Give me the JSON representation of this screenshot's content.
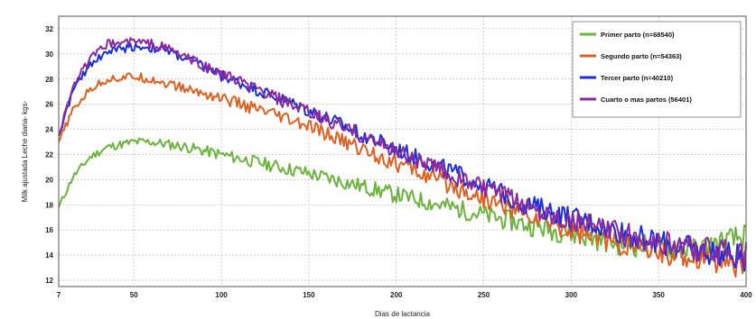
{
  "chart_data": {
    "type": "line",
    "title": "",
    "xlabel": "Dias de lactancia",
    "ylabel": "Milk ajustada Leche diaria- kgs-",
    "xlim": [
      7,
      400
    ],
    "ylim": [
      11.5,
      33
    ],
    "xticks": [
      7,
      50,
      100,
      150,
      200,
      250,
      300,
      350,
      400
    ],
    "yticks": [
      12,
      14,
      16,
      18,
      20,
      22,
      24,
      26,
      28,
      30,
      32
    ],
    "grid": true,
    "legend_position": "top-right",
    "series": [
      {
        "name": "Primer parto (n=68540)",
        "color": "#6cb33f",
        "x": [
          7,
          15,
          25,
          35,
          50,
          60,
          70,
          80,
          100,
          150,
          200,
          250,
          275,
          300,
          325,
          350,
          375,
          400
        ],
        "values": [
          17.8,
          20.2,
          21.8,
          22.6,
          23.0,
          23.0,
          22.8,
          22.6,
          22.0,
          20.5,
          18.8,
          17.2,
          16.4,
          15.7,
          15.0,
          14.6,
          14.5,
          15.5
        ]
      },
      {
        "name": "Segundo parto (n=54363)",
        "color": "#e06020",
        "x": [
          7,
          15,
          25,
          35,
          50,
          60,
          70,
          80,
          100,
          150,
          200,
          250,
          275,
          300,
          325,
          350,
          375,
          400
        ],
        "values": [
          23.0,
          25.5,
          27.2,
          28.0,
          28.2,
          28.0,
          27.6,
          27.2,
          26.5,
          24.2,
          21.3,
          18.5,
          17.2,
          16.0,
          15.0,
          14.2,
          13.8,
          13.2
        ]
      },
      {
        "name": "Tercer parto (n=40210)",
        "color": "#1a2ee0",
        "x": [
          7,
          15,
          25,
          35,
          50,
          60,
          70,
          80,
          100,
          150,
          200,
          250,
          275,
          300,
          325,
          350,
          375,
          400
        ],
        "values": [
          23.5,
          27.0,
          29.2,
          30.2,
          30.6,
          30.5,
          30.2,
          29.6,
          28.3,
          25.5,
          22.4,
          19.6,
          18.0,
          17.0,
          16.0,
          15.0,
          14.3,
          13.8
        ]
      },
      {
        "name": "Cuarto o mas partos (56401)",
        "color": "#8a2a9e",
        "x": [
          7,
          15,
          25,
          35,
          50,
          60,
          70,
          80,
          100,
          150,
          200,
          250,
          275,
          300,
          325,
          350,
          375,
          400
        ],
        "values": [
          23.5,
          27.5,
          29.6,
          30.8,
          31.0,
          30.8,
          30.4,
          29.7,
          28.4,
          25.3,
          22.3,
          19.3,
          17.9,
          16.8,
          15.8,
          15.0,
          14.4,
          14.0
        ]
      }
    ]
  }
}
